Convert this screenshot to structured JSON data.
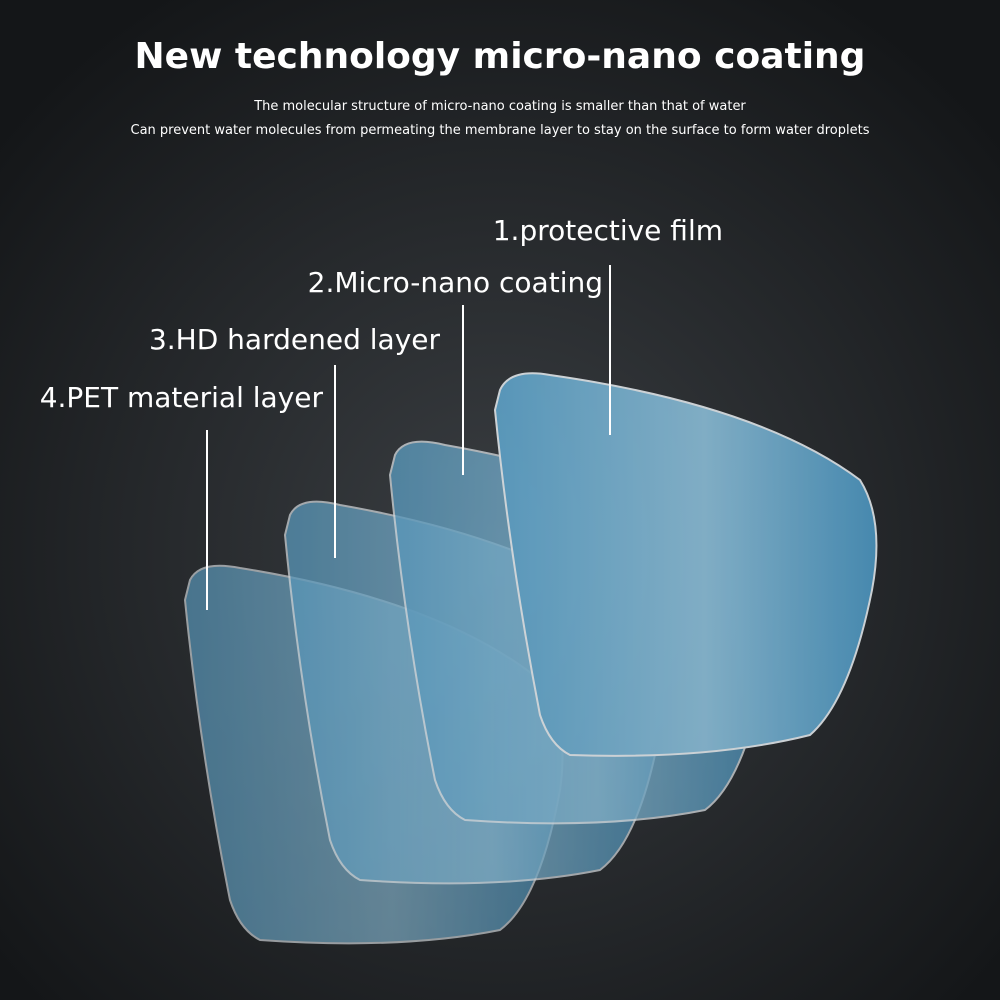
{
  "header": {
    "title": "New technology micro-nano coating",
    "lines": [
      "The molecular structure of micro-nano coating is smaller than that of water",
      "Can prevent water molecules from permeating the membrane layer to stay on the surface to form water droplets"
    ]
  },
  "layers": [
    {
      "label": "1.protective film"
    },
    {
      "label": "2.Micro-nano coating"
    },
    {
      "label": "3.HD hardened layer"
    },
    {
      "label": "4.PET material layer"
    }
  ]
}
